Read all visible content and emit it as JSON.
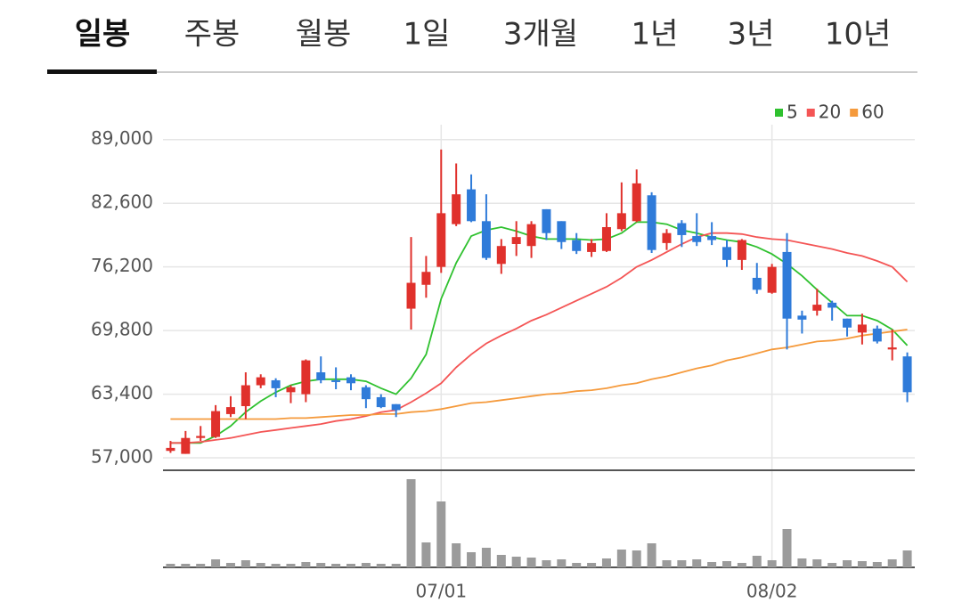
{
  "tabs": [
    "일봉",
    "주봉",
    "월봉",
    "1일",
    "3개월",
    "1년",
    "3년",
    "10년"
  ],
  "selected_tab": 0,
  "chart_data": {
    "type": "candlestick",
    "categories": [
      null,
      null,
      null,
      null,
      null,
      null,
      null,
      null,
      null,
      null,
      null,
      null,
      null,
      null,
      null,
      null,
      null,
      null,
      "07/01",
      null,
      null,
      null,
      null,
      null,
      null,
      null,
      null,
      null,
      null,
      null,
      null,
      null,
      null,
      null,
      null,
      null,
      null,
      null,
      null,
      null,
      "08/02",
      null,
      null,
      null,
      null,
      null,
      null,
      null,
      null,
      null
    ],
    "open": [
      57700,
      57400,
      59000,
      59100,
      61400,
      62200,
      64300,
      64800,
      63600,
      63400,
      65600,
      64800,
      65100,
      64100,
      63100,
      62400,
      72000,
      74400,
      76200,
      80500,
      84000,
      80800,
      76500,
      78500,
      78300,
      82000,
      80800,
      78900,
      77700,
      77800,
      80000,
      80800,
      83400,
      78600,
      80600,
      79300,
      79300,
      78200,
      76900,
      75100,
      73600,
      77700,
      71300,
      71800,
      72600,
      71000,
      69600,
      70000,
      67900,
      67200
    ],
    "high": [
      58700,
      59700,
      60200,
      62300,
      63200,
      65600,
      65400,
      65000,
      64300,
      66900,
      67200,
      66100,
      65400,
      64300,
      63400,
      62400,
      79200,
      77300,
      88000,
      86600,
      85500,
      83500,
      79000,
      80800,
      80800,
      82000,
      80800,
      79600,
      79000,
      81600,
      84700,
      86000,
      83700,
      80000,
      80900,
      81600,
      80700,
      78900,
      79000,
      76600,
      76500,
      79600,
      71800,
      74000,
      72800,
      71000,
      71500,
      70300,
      69900,
      67600
    ],
    "low": [
      57500,
      57400,
      58700,
      59000,
      61100,
      60900,
      64000,
      63100,
      62500,
      62600,
      64500,
      63900,
      63800,
      62000,
      62000,
      61100,
      69900,
      73100,
      75600,
      80300,
      80700,
      76900,
      75500,
      77300,
      77100,
      78900,
      78000,
      77500,
      77200,
      77700,
      79800,
      80700,
      77600,
      77900,
      78200,
      78300,
      78400,
      76200,
      75900,
      73500,
      73500,
      67900,
      69500,
      71300,
      70800,
      69200,
      68400,
      68500,
      66800,
      62600
    ],
    "close": [
      58000,
      59000,
      59200,
      61700,
      62100,
      64300,
      65100,
      64000,
      64100,
      66800,
      64800,
      64700,
      64500,
      62900,
      62100,
      61800,
      74600,
      75700,
      81600,
      83500,
      80800,
      77100,
      78300,
      79200,
      80500,
      79600,
      78700,
      77800,
      78600,
      80200,
      81600,
      84600,
      77900,
      79600,
      79400,
      78700,
      78900,
      76900,
      78900,
      73900,
      76200,
      71000,
      70900,
      72400,
      72100,
      70100,
      70400,
      68700,
      68100,
      63600
    ],
    "up_color": "#e0312c",
    "down_color": "#2f7bd9",
    "series": [
      {
        "name": "5",
        "color": "#2fc12f",
        "values": [
          58500,
          58500,
          58500,
          59200,
          60200,
          61600,
          62700,
          63600,
          64300,
          64700,
          64900,
          64900,
          64900,
          64700,
          64000,
          63400,
          65000,
          67400,
          73000,
          76600,
          79300,
          79900,
          80200,
          79800,
          79300,
          79000,
          79000,
          79000,
          78900,
          79000,
          79600,
          80700,
          80700,
          80500,
          79900,
          79600,
          79200,
          78900,
          78700,
          78200,
          77500,
          76500,
          75300,
          73900,
          72600,
          71300,
          71300,
          70800,
          69900,
          68300
        ]
      },
      {
        "name": "20",
        "color": "#f45555",
        "values": [
          58500,
          58500,
          58600,
          58800,
          59000,
          59300,
          59600,
          59800,
          60000,
          60200,
          60400,
          60700,
          60900,
          61200,
          61600,
          61800,
          62600,
          63500,
          64500,
          66100,
          67400,
          68500,
          69300,
          70000,
          70800,
          71400,
          72100,
          72800,
          73500,
          74200,
          75100,
          76200,
          76900,
          77700,
          78500,
          79200,
          79600,
          79600,
          79500,
          79200,
          79000,
          78900,
          78600,
          78300,
          78000,
          77600,
          77300,
          76800,
          76200,
          74700
        ]
      },
      {
        "name": "60",
        "color": "#f59a3c",
        "values": [
          60900,
          60900,
          60900,
          60900,
          60900,
          60900,
          60900,
          60900,
          61000,
          61000,
          61100,
          61200,
          61300,
          61300,
          61400,
          61400,
          61600,
          61700,
          61900,
          62200,
          62500,
          62600,
          62800,
          63000,
          63200,
          63400,
          63500,
          63700,
          63800,
          64000,
          64300,
          64500,
          64900,
          65200,
          65600,
          66000,
          66300,
          66800,
          67100,
          67500,
          67900,
          68100,
          68400,
          68700,
          68800,
          69000,
          69300,
          69500,
          69700,
          69900
        ]
      }
    ],
    "volume": [
      4,
      4,
      4,
      9,
      5,
      8,
      5,
      4,
      4,
      6,
      5,
      4,
      4,
      5,
      4,
      4,
      99,
      28,
      74,
      27,
      17,
      22,
      14,
      12,
      11,
      8,
      9,
      5,
      5,
      10,
      20,
      19,
      27,
      8,
      8,
      9,
      6,
      7,
      5,
      13,
      8,
      43,
      10,
      9,
      5,
      8,
      7,
      6,
      9,
      19
    ],
    "volume_color": "#9b9b9b",
    "ylim": [
      55750,
      90500
    ],
    "yticks": [
      {
        "value": 57000,
        "label": "57,000"
      },
      {
        "value": 63400,
        "label": "63,400"
      },
      {
        "value": 69800,
        "label": "69,800"
      },
      {
        "value": 76200,
        "label": "76,200"
      },
      {
        "value": 82600,
        "label": "82,600"
      },
      {
        "value": 89000,
        "label": "89,000"
      }
    ],
    "grid": true,
    "legend": "top-right"
  }
}
